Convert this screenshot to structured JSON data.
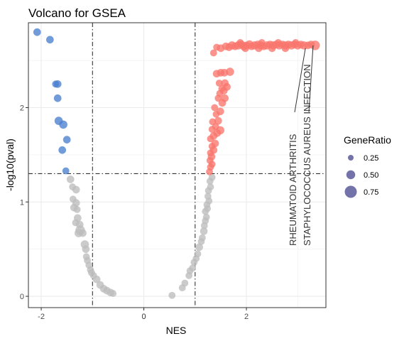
{
  "chart_data": {
    "type": "scatter",
    "title": "Volcano for GSEA",
    "xlabel": "NES",
    "ylabel": "-log10(pval)",
    "xlim": [
      -2.25,
      3.55
    ],
    "ylim": [
      -0.12,
      2.9
    ],
    "xticks": [
      -2,
      0,
      2
    ],
    "yticks": [
      0,
      1,
      2
    ],
    "grid": true,
    "vlines": [
      -1,
      1
    ],
    "hline": 1.3,
    "colors": {
      "up": "#f8766d",
      "down": "#4a7fd0",
      "ns": "#bdbdbd"
    },
    "legend": {
      "title": "GeneRatio",
      "position": "right",
      "entries": [
        {
          "label": "0.25",
          "value": 0.25
        },
        {
          "label": "0.50",
          "value": 0.5
        },
        {
          "label": "0.75",
          "value": 0.75
        }
      ]
    },
    "annotations": [
      {
        "label": "RHEUMATOID ARTHRITIS",
        "x": 3.15,
        "y": 2.63
      },
      {
        "label": "STAPHYLOCOCCUS AUREUS INFECTION",
        "x": 3.3,
        "y": 2.66
      }
    ],
    "points": {
      "down": [
        [
          -2.08,
          2.8,
          0.4
        ],
        [
          -1.83,
          2.72,
          0.4
        ],
        [
          -1.72,
          2.25,
          0.35
        ],
        [
          -1.68,
          2.25,
          0.4
        ],
        [
          -1.68,
          2.1,
          0.4
        ],
        [
          -1.66,
          1.86,
          0.45
        ],
        [
          -1.57,
          1.82,
          0.45
        ],
        [
          -1.5,
          1.66,
          0.4
        ],
        [
          -1.59,
          1.55,
          0.4
        ],
        [
          -1.52,
          1.33,
          0.35
        ]
      ],
      "ns_left": [
        [
          -1.43,
          1.24,
          0.4
        ],
        [
          -1.39,
          1.16,
          0.35
        ],
        [
          -1.32,
          1.13,
          0.4
        ],
        [
          -1.38,
          1.03,
          0.35
        ],
        [
          -1.32,
          0.99,
          0.4
        ],
        [
          -1.36,
          0.94,
          0.4
        ],
        [
          -1.3,
          0.92,
          0.35
        ],
        [
          -1.29,
          0.83,
          0.4
        ],
        [
          -1.33,
          0.78,
          0.35
        ],
        [
          -1.25,
          0.76,
          0.4
        ],
        [
          -1.24,
          0.7,
          0.55
        ],
        [
          -1.27,
          0.67,
          0.45
        ],
        [
          -1.19,
          0.67,
          0.4
        ],
        [
          -1.15,
          0.55,
          0.45
        ],
        [
          -1.13,
          0.5,
          0.4
        ],
        [
          -1.12,
          0.42,
          0.35
        ],
        [
          -1.1,
          0.38,
          0.35
        ],
        [
          -1.07,
          0.33,
          0.35
        ],
        [
          -1.04,
          0.28,
          0.35
        ],
        [
          -1.02,
          0.25,
          0.35
        ],
        [
          -0.98,
          0.22,
          0.35
        ],
        [
          -0.92,
          0.18,
          0.4
        ],
        [
          -0.85,
          0.12,
          0.4
        ],
        [
          -0.78,
          0.08,
          0.4
        ],
        [
          -0.72,
          0.06,
          0.4
        ],
        [
          -0.65,
          0.04,
          0.4
        ],
        [
          -0.6,
          0.03,
          0.35
        ]
      ],
      "ns_right": [
        [
          0.55,
          0.01,
          0.35
        ],
        [
          0.75,
          0.09,
          0.35
        ],
        [
          0.8,
          0.14,
          0.35
        ],
        [
          0.88,
          0.22,
          0.35
        ],
        [
          0.9,
          0.27,
          0.35
        ],
        [
          0.95,
          0.3,
          0.35
        ],
        [
          0.98,
          0.36,
          0.35
        ],
        [
          1.02,
          0.4,
          0.35
        ],
        [
          1.05,
          0.45,
          0.35
        ],
        [
          1.08,
          0.52,
          0.4
        ],
        [
          1.12,
          0.58,
          0.35
        ],
        [
          1.14,
          0.62,
          0.35
        ],
        [
          1.17,
          0.69,
          0.4
        ],
        [
          1.18,
          0.75,
          0.35
        ],
        [
          1.2,
          0.8,
          0.35
        ],
        [
          1.22,
          0.84,
          0.35
        ],
        [
          1.2,
          0.9,
          0.35
        ],
        [
          1.24,
          0.93,
          0.35
        ],
        [
          1.23,
          0.97,
          0.35
        ],
        [
          1.27,
          1.01,
          0.35
        ],
        [
          1.25,
          1.06,
          0.35
        ],
        [
          1.26,
          1.12,
          0.35
        ],
        [
          1.3,
          1.16,
          0.35
        ],
        [
          1.29,
          1.22,
          0.35
        ],
        [
          1.33,
          1.26,
          0.35
        ]
      ],
      "up": [
        [
          1.28,
          1.32,
          0.35
        ],
        [
          1.3,
          1.37,
          0.35
        ],
        [
          1.33,
          1.4,
          0.35
        ],
        [
          1.29,
          1.44,
          0.35
        ],
        [
          1.32,
          1.48,
          0.4
        ],
        [
          1.3,
          1.52,
          0.35
        ],
        [
          1.36,
          1.55,
          0.4
        ],
        [
          1.33,
          1.59,
          0.35
        ],
        [
          1.39,
          1.62,
          0.4
        ],
        [
          1.3,
          1.67,
          0.35
        ],
        [
          1.36,
          1.7,
          0.4
        ],
        [
          1.43,
          1.73,
          0.4
        ],
        [
          1.33,
          1.77,
          0.35
        ],
        [
          1.49,
          1.76,
          0.45
        ],
        [
          1.4,
          1.8,
          0.35
        ],
        [
          1.34,
          1.85,
          0.35
        ],
        [
          1.45,
          1.86,
          0.4
        ],
        [
          1.41,
          1.93,
          0.35
        ],
        [
          1.49,
          1.96,
          0.4
        ],
        [
          1.38,
          2.0,
          0.35
        ],
        [
          1.53,
          2.05,
          0.4
        ],
        [
          1.45,
          2.1,
          0.35
        ],
        [
          1.58,
          2.1,
          0.4
        ],
        [
          1.48,
          2.15,
          0.35
        ],
        [
          1.56,
          2.18,
          0.4
        ],
        [
          1.52,
          2.2,
          0.35
        ],
        [
          1.62,
          2.22,
          0.4
        ],
        [
          1.47,
          2.26,
          0.35
        ],
        [
          1.58,
          2.26,
          0.4
        ],
        [
          1.42,
          2.36,
          0.4
        ],
        [
          1.5,
          2.37,
          0.4
        ],
        [
          1.57,
          2.37,
          0.4
        ],
        [
          1.68,
          2.38,
          0.45
        ],
        [
          1.36,
          2.58,
          0.35
        ],
        [
          1.5,
          2.63,
          0.4
        ],
        [
          1.42,
          2.64,
          0.35
        ],
        [
          1.6,
          2.65,
          0.4
        ],
        [
          1.66,
          2.64,
          0.4
        ],
        [
          1.72,
          2.66,
          0.45
        ],
        [
          1.78,
          2.65,
          0.4
        ],
        [
          1.84,
          2.66,
          0.45
        ],
        [
          1.9,
          2.67,
          0.4
        ],
        [
          1.95,
          2.65,
          0.45
        ],
        [
          2.0,
          2.66,
          0.4
        ],
        [
          2.06,
          2.67,
          0.45
        ],
        [
          2.1,
          2.65,
          0.4
        ],
        [
          2.16,
          2.66,
          0.45
        ],
        [
          2.22,
          2.67,
          0.4
        ],
        [
          2.28,
          2.66,
          0.45
        ],
        [
          2.34,
          2.65,
          0.4
        ],
        [
          2.4,
          2.66,
          0.45
        ],
        [
          2.46,
          2.67,
          0.4
        ],
        [
          2.52,
          2.66,
          0.45
        ],
        [
          2.58,
          2.67,
          0.4
        ],
        [
          2.64,
          2.66,
          0.45
        ],
        [
          2.7,
          2.67,
          0.4
        ],
        [
          2.76,
          2.66,
          0.45
        ],
        [
          2.82,
          2.67,
          0.4
        ],
        [
          2.88,
          2.66,
          0.45
        ],
        [
          2.94,
          2.67,
          0.4
        ],
        [
          3.0,
          2.66,
          0.45
        ],
        [
          3.06,
          2.67,
          0.4
        ],
        [
          3.12,
          2.66,
          0.45
        ],
        [
          3.2,
          2.66,
          0.4
        ],
        [
          3.26,
          2.67,
          0.4
        ],
        [
          3.34,
          2.66,
          0.55
        ],
        [
          1.98,
          2.63,
          0.4
        ],
        [
          2.24,
          2.63,
          0.4
        ],
        [
          2.5,
          2.63,
          0.4
        ],
        [
          2.76,
          2.63,
          0.4
        ],
        [
          1.88,
          2.69,
          0.35
        ],
        [
          2.3,
          2.69,
          0.35
        ],
        [
          2.62,
          2.69,
          0.35
        ],
        [
          2.96,
          2.69,
          0.35
        ]
      ]
    }
  }
}
